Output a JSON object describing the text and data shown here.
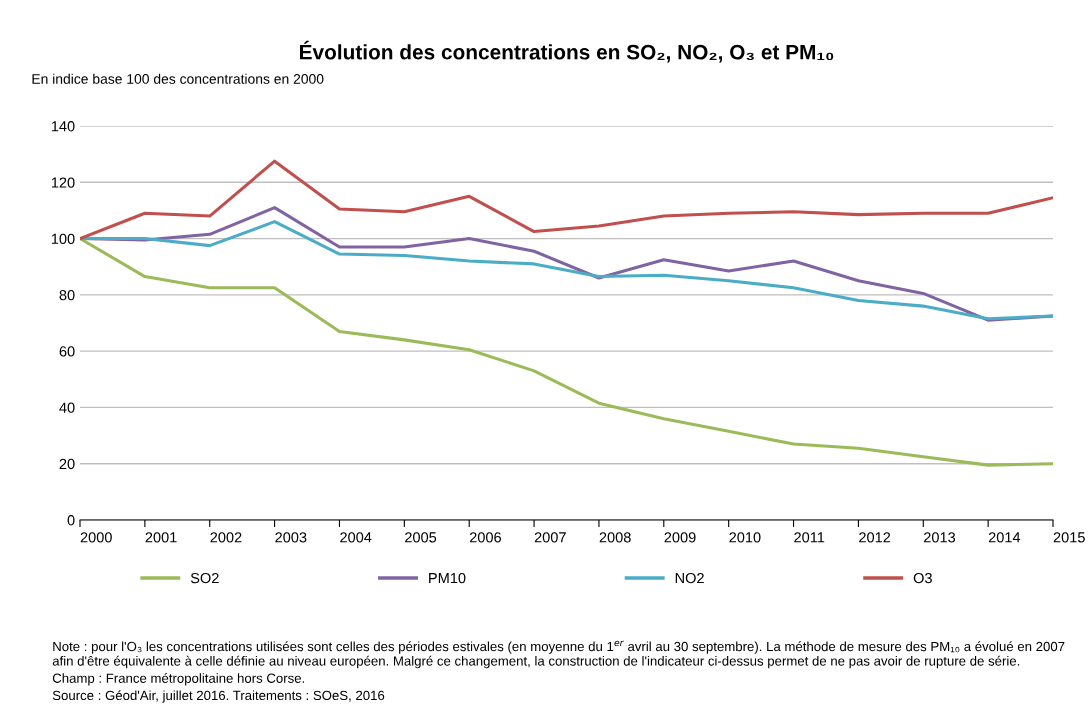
{
  "chart_data": {
    "type": "line",
    "title": "Évolution des concentrations en SO₂, NO₂, O₃ et PM₁₀",
    "ylabel": "En indice base 100 des concentrations en 2000",
    "categories": [
      "2000",
      "2001",
      "2002",
      "2003",
      "2004",
      "2005",
      "2006",
      "2007",
      "2008",
      "2009",
      "2010",
      "2011",
      "2012",
      "2013",
      "2014",
      "2015"
    ],
    "series": [
      {
        "name": "SO2",
        "color": "#9bbb59",
        "values": [
          100,
          86.5,
          82.5,
          82.5,
          67,
          64,
          60.5,
          53,
          41.5,
          36,
          31.5,
          27,
          25.5,
          22.5,
          19.5,
          20
        ]
      },
      {
        "name": "PM10",
        "color": "#8064a2",
        "values": [
          100,
          99.5,
          101.5,
          111,
          97,
          97,
          100,
          95.5,
          86,
          92.5,
          88.5,
          92,
          85,
          80.5,
          71,
          72.5
        ]
      },
      {
        "name": "NO2",
        "color": "#4bacc6",
        "values": [
          100,
          100,
          97.5,
          106,
          94.5,
          94,
          92,
          91,
          86.5,
          87,
          85,
          82.5,
          78,
          76,
          71.5,
          72.5
        ]
      },
      {
        "name": "O3",
        "color": "#c0504d",
        "values": [
          100,
          109,
          108,
          127.5,
          110.5,
          109.5,
          115,
          102.5,
          104.5,
          108,
          109,
          109.5,
          108.5,
          109,
          109,
          114.5
        ]
      }
    ],
    "ylim": [
      0,
      140
    ],
    "yticks": [
      0,
      20,
      40,
      60,
      80,
      100,
      120,
      140
    ],
    "grid": "y",
    "legend": "bottom",
    "marker": "none",
    "line_style": "solid",
    "annotations": [
      "Note : pour l'O₃ les concentrations utilisées sont celles des périodes estivales (en moyenne du 1$^{er}$ avril au 30 septembre). La méthode de mesure des PM₁₀ a évolué en 2007 afin d'être équivalente à celle définie au niveau européen. Malgré ce changement, la construction de l'indicateur ci-dessus permet de ne pas avoir de rupture de série.",
      "Champ : France métropolitaine hors Corse.",
      "Source : Géod'Air, juillet 2016. Traitements : SOeS, 2016"
    ]
  }
}
